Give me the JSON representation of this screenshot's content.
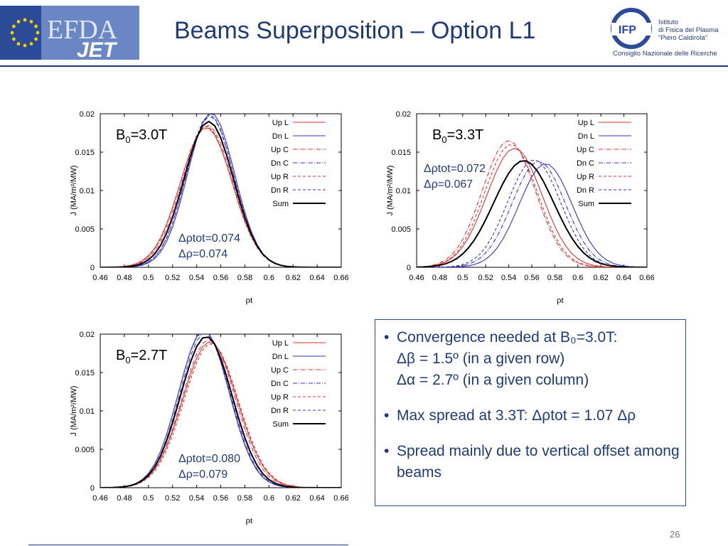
{
  "slide": {
    "title": "Beams Superposition – Option L1",
    "page_number": "26"
  },
  "logos": {
    "left_text": "EFDA",
    "left_sub": "JET",
    "right_mark": "IFP",
    "right_lines": [
      "Istituto",
      "di Fisica del Plasma",
      "\"Piero Caldirola\""
    ],
    "right_org": "Consiglio Nazionale delle Ricerche"
  },
  "colors": {
    "title": "#1f3a78",
    "red": "#e03030",
    "blue": "#3030d0",
    "sum": "#000000"
  },
  "bullets": [
    {
      "text": "Convergence needed at B₀=3.0T:",
      "sublines": [
        "Δβ = 1.5º (in a given row)",
        "Δα = 2.7º (in a given column)"
      ]
    },
    {
      "text": "Max spread at 3.3T: Δρtot = 1.07 Δρ",
      "sublines": []
    },
    {
      "text": "Spread mainly due to vertical offset among beams",
      "sublines": []
    }
  ],
  "chart_data": [
    {
      "type": "line",
      "panel_label": "B0=3.0T",
      "annotation": [
        "Δρtot=0.074",
        "Δρ=0.074"
      ],
      "xlabel": "ρt",
      "ylabel": "J (MA/m²/MW)",
      "xlim": [
        0.46,
        0.66
      ],
      "ylim": [
        0,
        0.02
      ],
      "xticks": [
        "0.46",
        "0.48",
        "0.5",
        "0.52",
        "0.54",
        "0.56",
        "0.58",
        "0.6",
        "0.62",
        "0.64",
        "0.66"
      ],
      "yticks": [
        "0",
        "0.005",
        "0.01",
        "0.015",
        "0.02"
      ],
      "legend": "top-right",
      "series": [
        {
          "name": "Up L",
          "color": "#e03030",
          "dash": "",
          "center": 0.548,
          "peak": 0.0182,
          "sigma": 0.0215
        },
        {
          "name": "Dn L",
          "color": "#3030d0",
          "dash": "",
          "center": 0.552,
          "peak": 0.0201,
          "sigma": 0.0195
        },
        {
          "name": "Up C",
          "color": "#e03030",
          "dash": "6,2,1,2",
          "center": 0.549,
          "peak": 0.0185,
          "sigma": 0.021
        },
        {
          "name": "Dn C",
          "color": "#3030d0",
          "dash": "6,2,1,2",
          "center": 0.551,
          "peak": 0.0197,
          "sigma": 0.0198
        },
        {
          "name": "Up R",
          "color": "#e03030",
          "dash": "4,3",
          "center": 0.548,
          "peak": 0.0184,
          "sigma": 0.0212
        },
        {
          "name": "Dn R",
          "color": "#3030d0",
          "dash": "4,3",
          "center": 0.551,
          "peak": 0.0199,
          "sigma": 0.0197
        },
        {
          "name": "Sum",
          "color": "#000000",
          "dash": "",
          "center": 0.55,
          "peak": 0.019,
          "sigma": 0.0205
        }
      ]
    },
    {
      "type": "line",
      "panel_label": "B0=3.3T",
      "annotation": [
        "Δρtot=0.072",
        "Δρ=0.067"
      ],
      "xlabel": "ρt",
      "ylabel": "J (MA/m²/MW)",
      "xlim": [
        0.46,
        0.66
      ],
      "ylim": [
        0,
        0.02
      ],
      "xticks": [
        "0.46",
        "0.48",
        "0.5",
        "0.52",
        "0.54",
        "0.56",
        "0.58",
        "0.6",
        "0.62",
        "0.64",
        "0.66"
      ],
      "yticks": [
        "0",
        "0.005",
        "0.01",
        "0.015",
        "0.02"
      ],
      "legend": "top-right",
      "series": [
        {
          "name": "Up L",
          "color": "#e03030",
          "dash": "",
          "center": 0.545,
          "peak": 0.0155,
          "sigma": 0.024
        },
        {
          "name": "Dn L",
          "color": "#3030d0",
          "dash": "",
          "center": 0.572,
          "peak": 0.0135,
          "sigma": 0.023
        },
        {
          "name": "Up C",
          "color": "#e03030",
          "dash": "6,2,1,2",
          "center": 0.54,
          "peak": 0.0165,
          "sigma": 0.023
        },
        {
          "name": "Dn C",
          "color": "#3030d0",
          "dash": "6,2,1,2",
          "center": 0.566,
          "peak": 0.0138,
          "sigma": 0.023
        },
        {
          "name": "Up R",
          "color": "#e03030",
          "dash": "4,3",
          "center": 0.542,
          "peak": 0.016,
          "sigma": 0.023
        },
        {
          "name": "Dn R",
          "color": "#3030d0",
          "dash": "4,3",
          "center": 0.562,
          "peak": 0.014,
          "sigma": 0.023
        },
        {
          "name": "Sum",
          "color": "#000000",
          "dash": "",
          "center": 0.553,
          "peak": 0.0139,
          "sigma": 0.026
        }
      ]
    },
    {
      "type": "line",
      "panel_label": "B0=2.7T",
      "annotation": [
        "Δρtot=0.080",
        "Δρ=0.079"
      ],
      "xlabel": "ρt",
      "ylabel": "J (MA/m²/MW)",
      "xlim": [
        0.46,
        0.66
      ],
      "ylim": [
        0,
        0.02
      ],
      "xticks": [
        "0.46",
        "0.48",
        "0.5",
        "0.52",
        "0.54",
        "0.56",
        "0.58",
        "0.6",
        "0.62",
        "0.64",
        "0.66"
      ],
      "yticks": [
        "0",
        "0.005",
        "0.01",
        "0.015",
        "0.02"
      ],
      "legend": "top-right",
      "series": [
        {
          "name": "Up L",
          "color": "#e03030",
          "dash": "",
          "center": 0.551,
          "peak": 0.019,
          "sigma": 0.0225
        },
        {
          "name": "Dn L",
          "color": "#3030d0",
          "dash": "",
          "center": 0.546,
          "peak": 0.0205,
          "sigma": 0.021
        },
        {
          "name": "Up C",
          "color": "#e03030",
          "dash": "6,2,1,2",
          "center": 0.55,
          "peak": 0.0193,
          "sigma": 0.022
        },
        {
          "name": "Dn C",
          "color": "#3030d0",
          "dash": "6,2,1,2",
          "center": 0.547,
          "peak": 0.0202,
          "sigma": 0.021
        },
        {
          "name": "Up R",
          "color": "#e03030",
          "dash": "4,3",
          "center": 0.552,
          "peak": 0.0188,
          "sigma": 0.0225
        },
        {
          "name": "Dn R",
          "color": "#3030d0",
          "dash": "4,3",
          "center": 0.546,
          "peak": 0.0204,
          "sigma": 0.021
        },
        {
          "name": "Sum",
          "color": "#000000",
          "dash": "",
          "center": 0.548,
          "peak": 0.0197,
          "sigma": 0.0215
        }
      ]
    }
  ]
}
